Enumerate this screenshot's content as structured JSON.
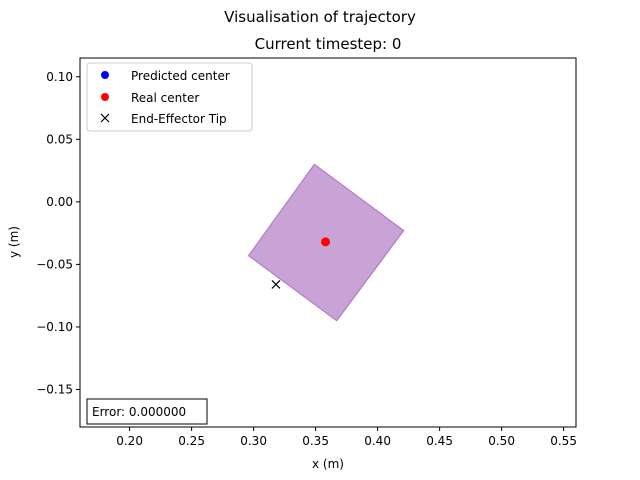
{
  "chart_data": {
    "type": "scatter",
    "suptitle": "Visualisation of trajectory",
    "title": "Current timestep: 0",
    "xlabel": "x (m)",
    "ylabel": "y (m)",
    "xlim": [
      0.16,
      0.56
    ],
    "ylim": [
      -0.18,
      0.115
    ],
    "xticks": [
      0.2,
      0.25,
      0.3,
      0.35,
      0.4,
      0.45,
      0.5,
      0.55
    ],
    "yticks": [
      -0.15,
      -0.1,
      -0.05,
      0.0,
      0.05,
      0.1
    ],
    "xtick_labels": [
      "0.20",
      "0.25",
      "0.30",
      "0.35",
      "0.40",
      "0.45",
      "0.50",
      "0.55"
    ],
    "ytick_labels": [
      "−0.15",
      "−0.10",
      "−0.05",
      "0.00",
      "0.05",
      "0.10"
    ],
    "grid": false,
    "legend_position": "top-left",
    "legend": [
      {
        "label": "Predicted center",
        "marker": "circle",
        "color": "#0000ff"
      },
      {
        "label": "Real center",
        "marker": "circle",
        "color": "#ff0000"
      },
      {
        "label": "End-Effector Tip",
        "marker": "x",
        "color": "#000000"
      }
    ],
    "object_polygon": {
      "points": [
        [
          0.349,
          0.03
        ],
        [
          0.421,
          -0.023
        ],
        [
          0.367,
          -0.095
        ],
        [
          0.296,
          -0.043
        ]
      ],
      "fill": "#c9a3d6",
      "edge": "#b07bc9"
    },
    "series": [
      {
        "name": "Real center",
        "marker": "circle",
        "color": "#ff0000",
        "points": [
          [
            0.358,
            -0.032
          ]
        ]
      },
      {
        "name": "End-Effector Tip",
        "marker": "x",
        "color": "#000000",
        "points": [
          [
            0.318,
            -0.066
          ]
        ]
      }
    ],
    "error_label": "Error: 0.000000"
  }
}
